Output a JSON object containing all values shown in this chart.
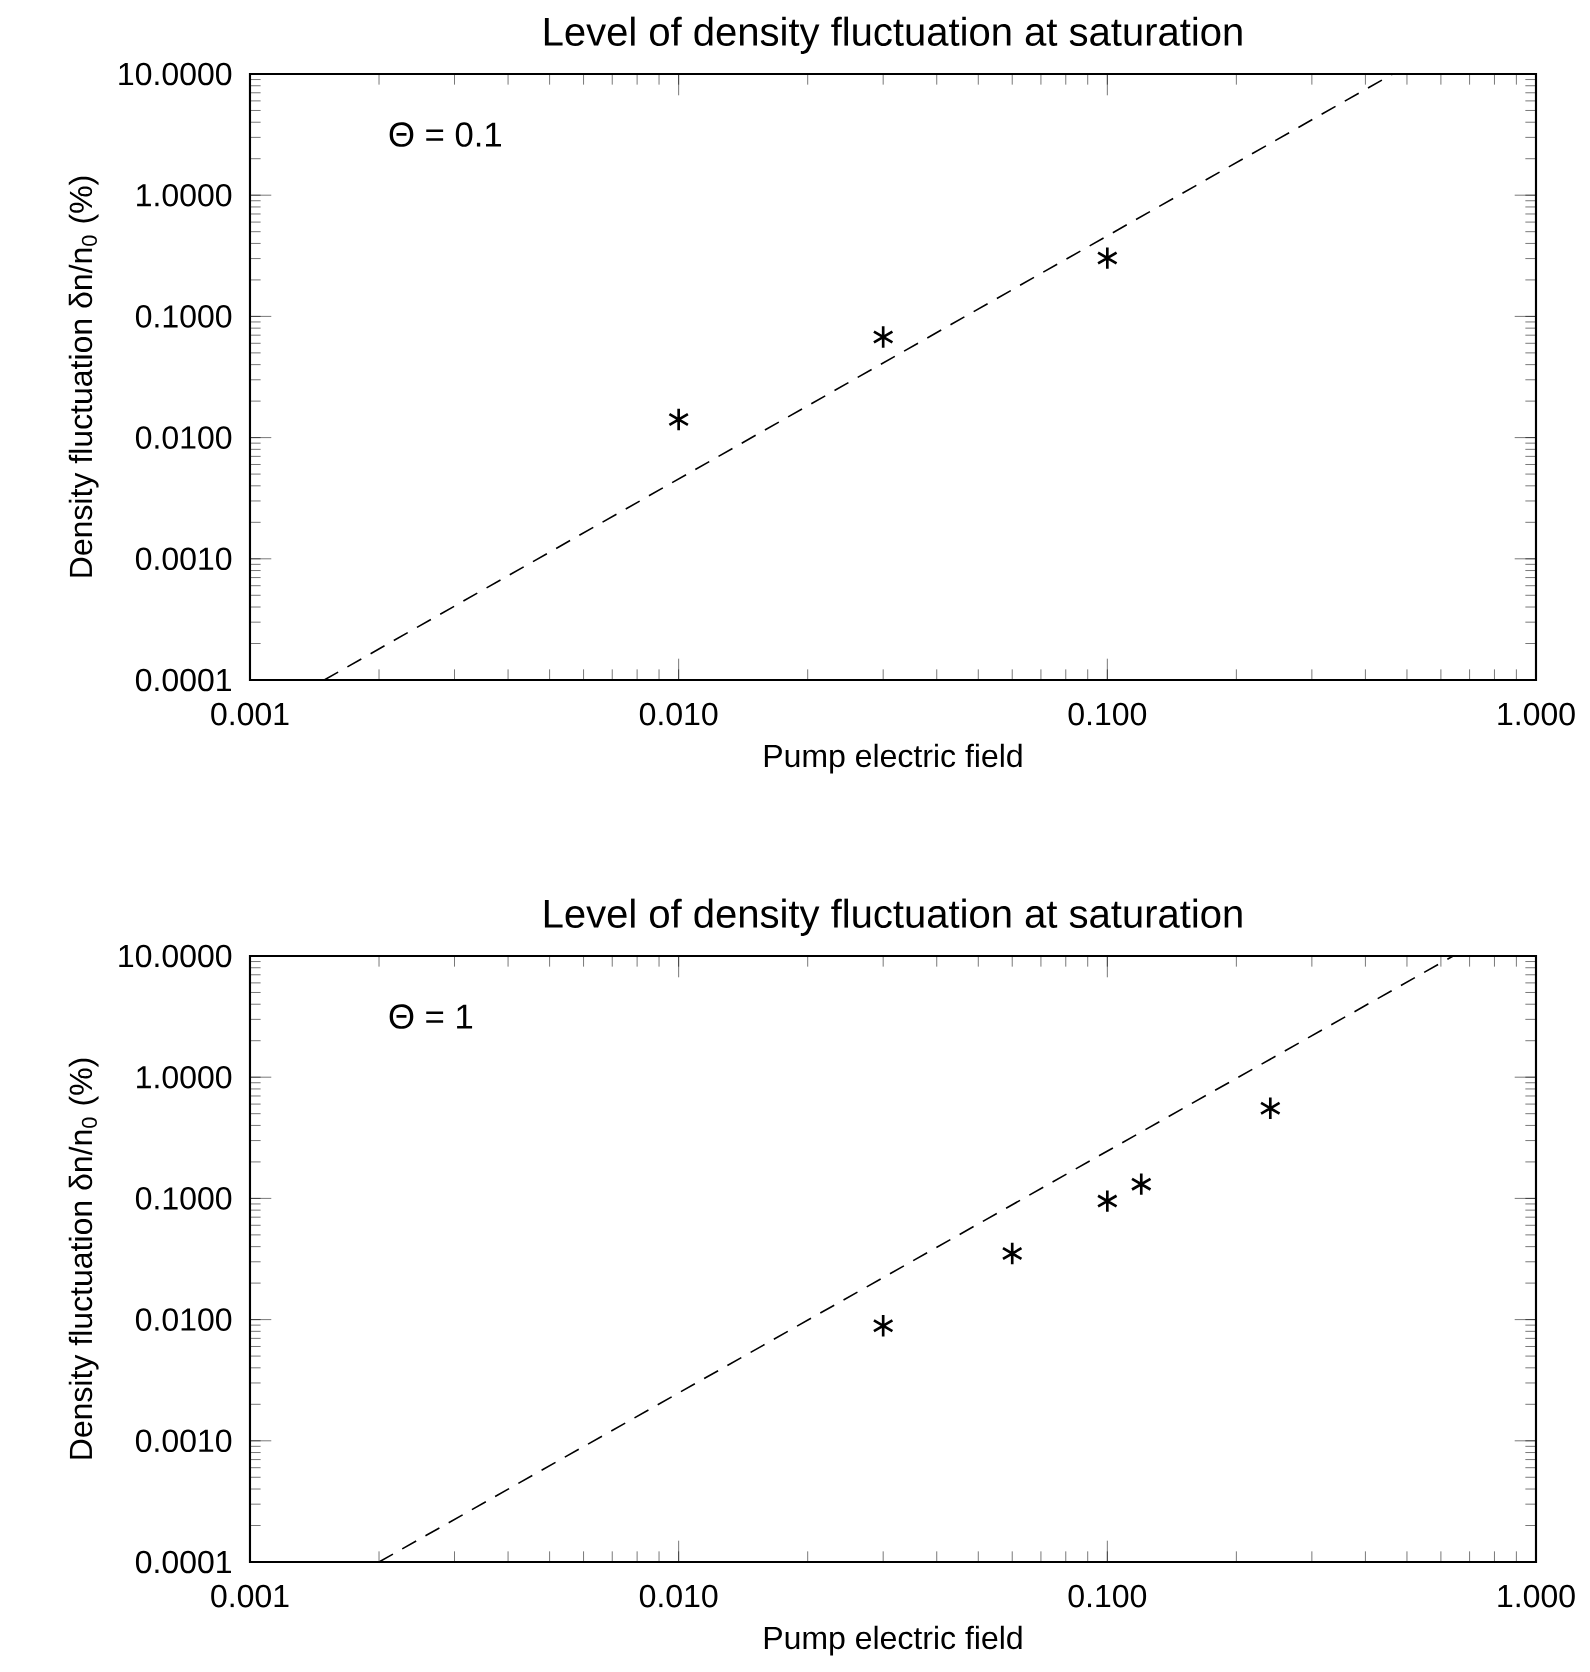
{
  "chart_data": [
    {
      "type": "scatter",
      "title": "Level of density fluctuation at saturation",
      "xlabel": "Pump electric field",
      "ylabel": "Density fluctuation δn/n$_{0}$ (%)",
      "log": "xy",
      "annotations": [
        "Θ = 0.1"
      ],
      "xlim": [
        0.001,
        1
      ],
      "ylim": [
        0.0001,
        10
      ],
      "xticks": [
        {
          "value": 0.001,
          "label": "0.001"
        },
        {
          "value": 0.01,
          "label": "0.010"
        },
        {
          "value": 0.1,
          "label": "0.100"
        },
        {
          "value": 1,
          "label": "1.000"
        }
      ],
      "yticks": [
        {
          "value": 0.0001,
          "label": "0.0001"
        },
        {
          "value": 0.001,
          "label": "0.0010"
        },
        {
          "value": 0.01,
          "label": "0.0100"
        },
        {
          "value": 0.1,
          "label": "0.1000"
        },
        {
          "value": 1,
          "label": "1.0000"
        },
        {
          "value": 10,
          "label": "10.0000"
        }
      ],
      "series": [
        {
          "marker": "cross",
          "color": "#000000",
          "x": [
            0.01,
            0.03,
            0.1
          ],
          "values": [
            0.0141,
            0.0676,
            0.303
          ]
        },
        {
          "type": "line",
          "marker": "none",
          "line_style": "dashed",
          "color": "#000000",
          "x": [
            0.00149,
            0.463
          ],
          "values": [
            0.0001,
            10
          ]
        }
      ]
    },
    {
      "type": "scatter",
      "title": "Level of density fluctuation at saturation",
      "xlabel": "Pump electric field",
      "ylabel": "Density fluctuation δn/n$_{0}$ (%)",
      "log": "xy",
      "annotations": [
        "Θ = 1"
      ],
      "xlim": [
        0.001,
        1
      ],
      "ylim": [
        0.0001,
        10
      ],
      "xticks": [
        {
          "value": 0.001,
          "label": "0.001"
        },
        {
          "value": 0.01,
          "label": "0.010"
        },
        {
          "value": 0.1,
          "label": "0.100"
        },
        {
          "value": 1,
          "label": "1.000"
        }
      ],
      "yticks": [
        {
          "value": 0.0001,
          "label": "0.0001"
        },
        {
          "value": 0.001,
          "label": "0.0010"
        },
        {
          "value": 0.01,
          "label": "0.0100"
        },
        {
          "value": 0.1,
          "label": "0.1000"
        },
        {
          "value": 1,
          "label": "1.0000"
        },
        {
          "value": 10,
          "label": "10.0000"
        }
      ],
      "series": [
        {
          "marker": "cross",
          "color": "#000000",
          "x": [
            0.03,
            0.06,
            0.1,
            0.12,
            0.24
          ],
          "values": [
            0.0089,
            0.0351,
            0.095,
            0.131,
            0.554
          ]
        },
        {
          "type": "line",
          "marker": "none",
          "line_style": "dashed",
          "color": "#000000",
          "x": [
            0.002,
            0.641
          ],
          "values": [
            0.0001,
            10
          ]
        }
      ]
    }
  ]
}
